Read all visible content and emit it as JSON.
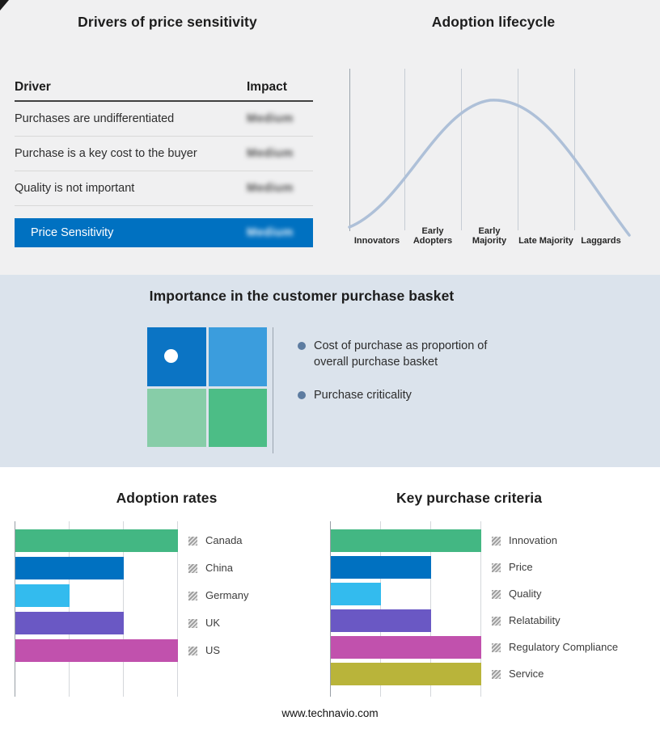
{
  "chart_data": [
    {
      "type": "table",
      "title": "Drivers of price sensitivity",
      "columns": [
        "Driver",
        "Impact"
      ],
      "rows": [
        [
          "Purchases are undifferentiated",
          "Medium"
        ],
        [
          "Purchase is a key cost to the buyer",
          "Medium"
        ],
        [
          "Quality is not important",
          "Medium"
        ]
      ],
      "summary_row": [
        "Price Sensitivity",
        "Medium"
      ],
      "summary_color": "#0071c1",
      "impact_values_blurred": true
    },
    {
      "type": "line",
      "title": "Adoption lifecycle",
      "categories": [
        "Innovators",
        "Early Adopters",
        "Early Majority",
        "Late Majority",
        "Laggards"
      ],
      "shape": "bell curve peaking over Early Majority",
      "values_normalized": [
        0.15,
        0.55,
        1.0,
        0.55,
        0.1
      ],
      "line_color": "#aec0d8",
      "grid": true
    },
    {
      "type": "bar",
      "title": "Adoption rates",
      "orientation": "horizontal",
      "categories": [
        "Canada",
        "China",
        "Germany",
        "UK",
        "US"
      ],
      "values": [
        3,
        2,
        1,
        2,
        3
      ],
      "value_scale": "relative gridline units (no numeric axis labels shown)",
      "xlim": [
        0,
        3
      ],
      "colors": [
        "#43b783",
        "#0071c1",
        "#33bbee",
        "#6a58c4",
        "#c151ad"
      ],
      "grid": true,
      "legend_position": "right",
      "legend_marker": "gray-hatched-square"
    },
    {
      "type": "bar",
      "title": "Key purchase criteria",
      "orientation": "horizontal",
      "categories": [
        "Innovation",
        "Price",
        "Quality",
        "Relatability",
        "Regulatory Compliance",
        "Service"
      ],
      "values": [
        3,
        2,
        1,
        2,
        3,
        3
      ],
      "value_scale": "relative gridline units (no numeric axis labels shown)",
      "xlim": [
        0,
        3
      ],
      "colors": [
        "#43b783",
        "#0071c1",
        "#33bbee",
        "#6a58c4",
        "#c151ad",
        "#b9b43a"
      ],
      "grid": true,
      "legend_position": "right",
      "legend_marker": "gray-hatched-square"
    }
  ],
  "basket": {
    "title": "Importance in the customer purchase basket",
    "bullets": [
      "Cost of purchase as proportion of overall purchase basket",
      "Purchase criticality"
    ],
    "quadrant_colors": [
      "#0b74c4",
      "#3b9ddd",
      "#87cda8",
      "#4cbd86"
    ],
    "marker": "white-dot-in-top-left-quadrant"
  },
  "footer": {
    "text": "www.technavio.com"
  }
}
